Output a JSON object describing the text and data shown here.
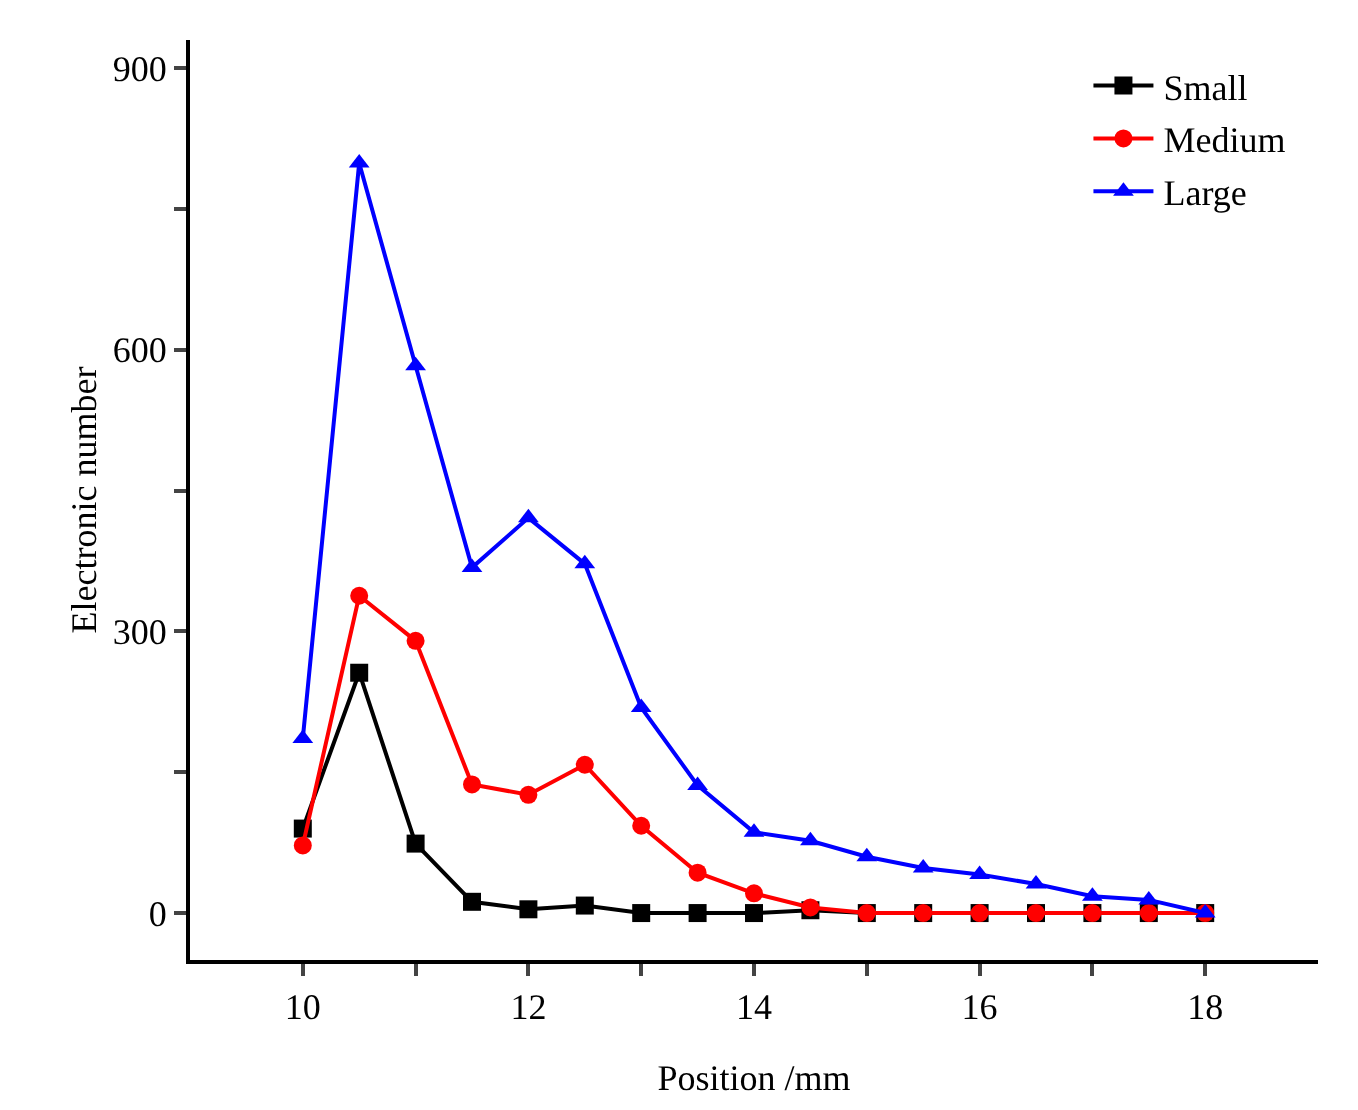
{
  "chart_data": {
    "type": "line",
    "xlabel": "Position /mm",
    "ylabel": "Electronic number",
    "x": [
      10,
      10.5,
      11,
      11.5,
      12,
      12.5,
      13,
      13.5,
      14,
      14.5,
      15,
      15.5,
      16,
      16.5,
      17,
      17.5,
      18
    ],
    "series": [
      {
        "name": "Small",
        "color": "#000000",
        "marker": "square",
        "values": [
          90,
          256,
          74,
          12,
          4,
          8,
          0,
          0,
          0,
          3,
          0,
          0,
          0,
          0,
          0,
          0,
          0
        ]
      },
      {
        "name": "Medium",
        "color": "#ff0000",
        "marker": "circle",
        "values": [
          72,
          338,
          290,
          137,
          126,
          158,
          93,
          43,
          21,
          6,
          0,
          0,
          0,
          0,
          0,
          0,
          0
        ]
      },
      {
        "name": "Large",
        "color": "#0000ff",
        "marker": "triangle",
        "values": [
          186,
          799,
          583,
          368,
          421,
          372,
          219,
          136,
          86,
          77,
          60,
          48,
          41,
          31,
          18,
          14,
          0
        ]
      }
    ],
    "xlim": [
      9,
      19
    ],
    "xticks": [
      10,
      {
        "value": 11,
        "label": null
      },
      12,
      {
        "value": 13,
        "label": null
      },
      14,
      {
        "value": 15,
        "label": null
      },
      16,
      {
        "value": 17,
        "label": null
      },
      18
    ],
    "ylim": [
      -50,
      930
    ],
    "yticks": [
      0,
      {
        "value": 150,
        "label": null
      },
      300,
      {
        "value": 450,
        "label": null
      },
      600,
      {
        "value": 750,
        "label": null
      },
      900
    ],
    "grid": false,
    "legend": "top right",
    "line_style": "solid"
  }
}
